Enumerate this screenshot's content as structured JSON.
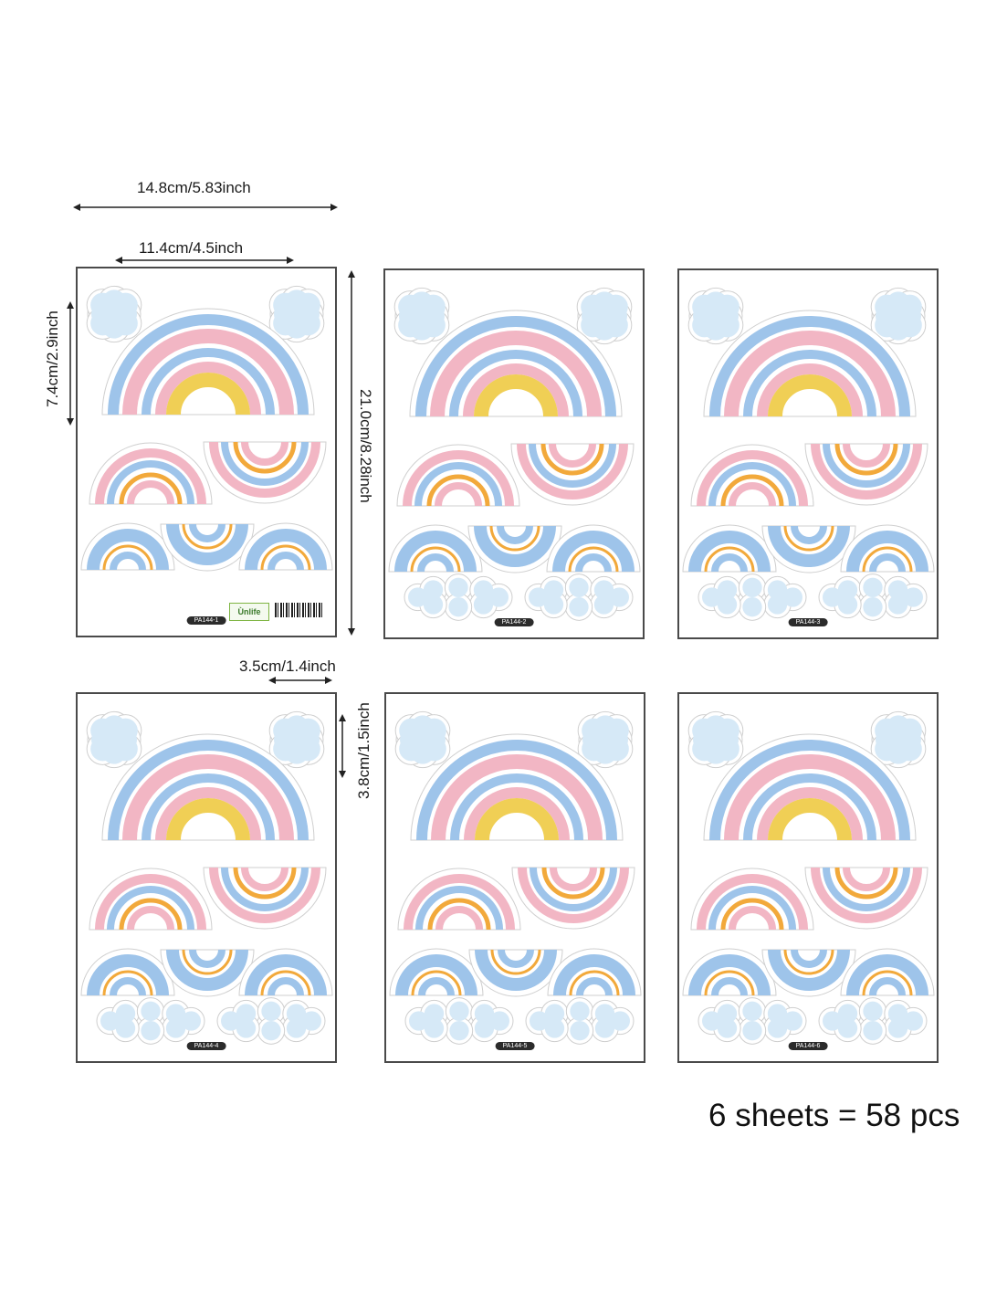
{
  "dimensions": {
    "sheet_width": "14.8cm/5.83inch",
    "sticker_width": "11.4cm/4.5inch",
    "sticker_height": "7.4cm/2.9inch",
    "sheet_height": "21.0cm/8.28inch",
    "small_width": "3.5cm/1.4inch",
    "small_height": "3.8cm/1.5inch"
  },
  "sheets": [
    {
      "code": "PA144-1"
    },
    {
      "code": "PA144-2"
    },
    {
      "code": "PA144-3"
    },
    {
      "code": "PA144-4"
    },
    {
      "code": "PA144-5"
    },
    {
      "code": "PA144-6"
    }
  ],
  "brand": "Ùnlife",
  "summary": "6 sheets = 58 pcs",
  "colors": {
    "blue": "#9ec4ea",
    "pink": "#f2b6c4",
    "yellow": "#f0cf55",
    "orange": "#f2a93b",
    "cloud": "#d6e9f7"
  }
}
